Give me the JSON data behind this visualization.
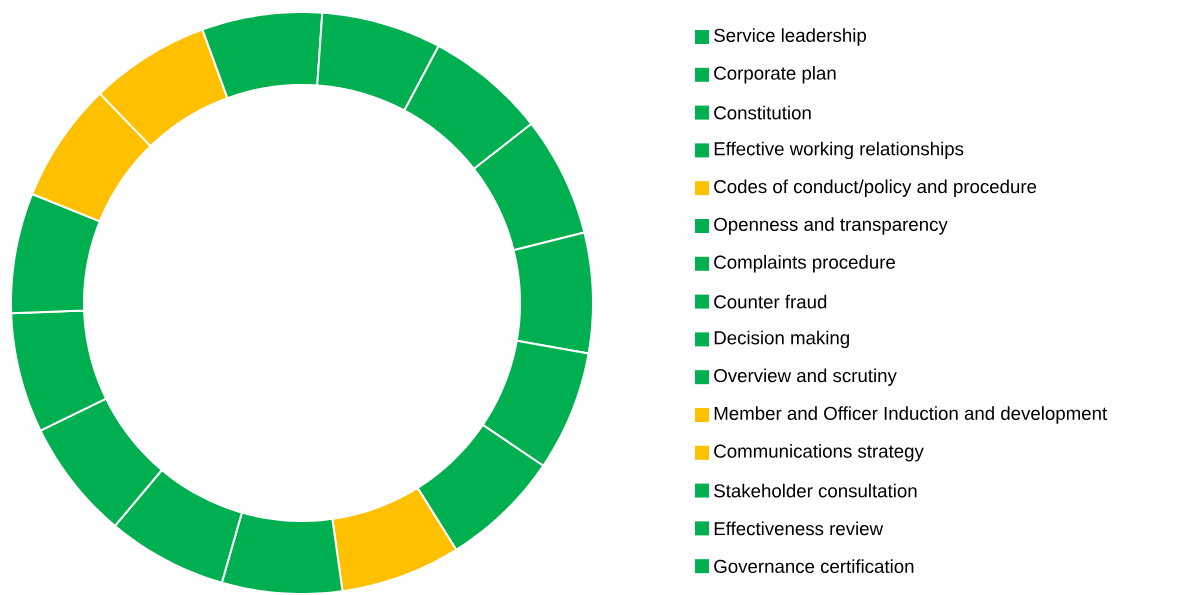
{
  "chart_data": {
    "type": "donut",
    "legend": "right",
    "categories": [
      "Service leadership",
      "Corporate plan",
      "Constitution",
      "Effective working relationships",
      "Codes of conduct/policy and procedure",
      "Openness and transparency",
      "Complaints procedure",
      "Counter fraud",
      "Decision making",
      "Overview and scrutiny",
      "Member and Officer Induction and development",
      "Communications strategy",
      "Stakeholder consultation",
      "Effectiveness review",
      "Governance certification"
    ],
    "values": [
      6.666666666666667,
      6.666666666666667,
      6.666666666666667,
      6.666666666666667,
      6.666666666666667,
      6.666666666666667,
      6.666666666666667,
      6.666666666666667,
      6.666666666666667,
      6.666666666666667,
      6.666666666666667,
      6.666666666666667,
      6.666666666666667,
      6.666666666666667,
      6.666666666666667
    ],
    "colors": [
      "#00b050",
      "#00b050",
      "#00b050",
      "#00b050",
      "#ffc000",
      "#00b050",
      "#00b050",
      "#00b050",
      "#00b050",
      "#00b050",
      "#ffc000",
      "#ffc000",
      "#00b050",
      "#00b050",
      "#00b050"
    ]
  }
}
